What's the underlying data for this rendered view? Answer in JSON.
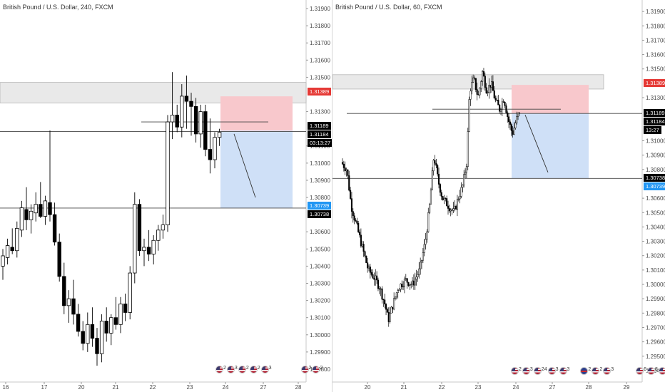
{
  "colors": {
    "bull_fill": "#ffffff",
    "bear_fill": "#000000",
    "candle_stroke": "#000000",
    "stop_zone": "#f8c8cc",
    "target_zone": "#cfe0f7",
    "supply_zone": "#e9e9e9",
    "red_tag": "#e53935",
    "blue_tag": "#2196f3",
    "black_tag": "#000000"
  },
  "left": {
    "title": "British Pound / U.S. Dollar, 240, FXCM",
    "price_min": 1.2975,
    "price_max": 1.3195,
    "y_labels": [
      "1.31900",
      "1.31800",
      "1.31700",
      "1.31600",
      "1.31500",
      "1.31300",
      "1.31100",
      "1.31000",
      "1.30900",
      "1.30800",
      "1.30600",
      "1.30500",
      "1.30400",
      "1.30300",
      "1.30200",
      "1.30100",
      "1.30000",
      "1.29900",
      "1.29800"
    ],
    "x_labels": [
      "16",
      "17",
      "20",
      "21",
      "22",
      "23",
      "24",
      "27",
      "28"
    ],
    "tags": {
      "sl": "1.31389",
      "entry_a": "1.31189",
      "entry_b": "1.31184",
      "countdown": "03:13:27",
      "tp_a": "1.30739",
      "tp_b": "1.30738"
    },
    "events": [
      {
        "icon": "us-flag-icon",
        "count": "2"
      },
      {
        "icon": "us-flag-icon",
        "count": "3"
      },
      {
        "icon": "us-flag-icon",
        "count": "2"
      },
      {
        "icon": "us-flag-icon",
        "count": "2"
      },
      {
        "icon": "us-flag-icon",
        "count": "3"
      },
      {
        "icon": "us-flag-icon",
        "count": "2"
      },
      {
        "icon": "us-flag-icon",
        "count": "2"
      }
    ],
    "candles": [
      [
        1.304,
        1.305,
        1.3032,
        1.3046
      ],
      [
        1.3045,
        1.3056,
        1.3041,
        1.3052
      ],
      [
        1.3051,
        1.3062,
        1.3047,
        1.3049
      ],
      [
        1.3049,
        1.3066,
        1.3045,
        1.3062
      ],
      [
        1.3061,
        1.3078,
        1.3057,
        1.3074
      ],
      [
        1.3073,
        1.3086,
        1.3061,
        1.3067
      ],
      [
        1.3067,
        1.3076,
        1.3059,
        1.3072
      ],
      [
        1.3071,
        1.3083,
        1.3066,
        1.3076
      ],
      [
        1.3076,
        1.3089,
        1.3068,
        1.3069
      ],
      [
        1.3069,
        1.3081,
        1.3064,
        1.3078
      ],
      [
        1.3077,
        1.3119,
        1.3066,
        1.307
      ],
      [
        1.307,
        1.3077,
        1.3052,
        1.3054
      ],
      [
        1.3054,
        1.3059,
        1.3031,
        1.3034
      ],
      [
        1.3034,
        1.3042,
        1.3012,
        1.3017
      ],
      [
        1.3017,
        1.3026,
        1.3007,
        1.3021
      ],
      [
        1.3021,
        1.3032,
        1.3006,
        1.3012
      ],
      [
        1.3012,
        1.3018,
        1.2999,
        1.3002
      ],
      [
        1.3002,
        1.3008,
        1.2991,
        1.2995
      ],
      [
        1.2995,
        1.3013,
        1.299,
        1.3006
      ],
      [
        1.3006,
        1.3016,
        1.2993,
        1.2998
      ],
      [
        1.2998,
        1.3004,
        1.2982,
        1.2989
      ],
      [
        1.2989,
        1.3012,
        1.2984,
        1.3008
      ],
      [
        1.3008,
        1.3016,
        1.2996,
        1.3001
      ],
      [
        1.3001,
        1.3012,
        1.2994,
        1.301
      ],
      [
        1.301,
        1.3022,
        1.3003,
        1.3006
      ],
      [
        1.3006,
        1.3022,
        1.3001,
        1.3018
      ],
      [
        1.3018,
        1.3024,
        1.3008,
        1.3013
      ],
      [
        1.3013,
        1.304,
        1.3009,
        1.3036
      ],
      [
        1.3036,
        1.3083,
        1.303,
        1.3076
      ],
      [
        1.3076,
        1.3079,
        1.3046,
        1.3049
      ],
      [
        1.3049,
        1.3056,
        1.304,
        1.3051
      ],
      [
        1.3051,
        1.3061,
        1.3043,
        1.3047
      ],
      [
        1.3047,
        1.3058,
        1.3041,
        1.3055
      ],
      [
        1.3055,
        1.3064,
        1.3049,
        1.3061
      ],
      [
        1.3061,
        1.307,
        1.3056,
        1.3064
      ],
      [
        1.3064,
        1.3128,
        1.306,
        1.3124
      ],
      [
        1.3124,
        1.3153,
        1.3114,
        1.3128
      ],
      [
        1.3128,
        1.3134,
        1.3118,
        1.3121
      ],
      [
        1.3121,
        1.3146,
        1.3115,
        1.3139
      ],
      [
        1.3139,
        1.3151,
        1.312,
        1.3136
      ],
      [
        1.3136,
        1.3141,
        1.3116,
        1.3133
      ],
      [
        1.3133,
        1.3138,
        1.3112,
        1.3117
      ],
      [
        1.3117,
        1.3134,
        1.3109,
        1.313
      ],
      [
        1.313,
        1.3134,
        1.3104,
        1.3108
      ],
      [
        1.3108,
        1.3126,
        1.3094,
        1.3102
      ],
      [
        1.3102,
        1.3118,
        1.3097,
        1.3115
      ],
      [
        1.3115,
        1.312,
        1.311,
        1.3118
      ]
    ]
  },
  "right": {
    "title": "British Pound / U.S. Dollar, 60, FXCM",
    "price_min": 1.2935,
    "price_max": 1.3198,
    "y_labels": [
      "1.31900",
      "1.31800",
      "1.31700",
      "1.31600",
      "1.31500",
      "1.31300",
      "1.31000",
      "1.30900",
      "1.30800",
      "1.30600",
      "1.30500",
      "1.30400",
      "1.30300",
      "1.30200",
      "1.30100",
      "1.30000",
      "1.29900",
      "1.29800",
      "1.29700",
      "1.29600",
      "1.29500",
      "1.29400"
    ],
    "x_labels": [
      "20",
      "21",
      "22",
      "23",
      "24",
      "27",
      "28",
      "29"
    ],
    "tags": {
      "sl": "1.31389",
      "entry_a": "1.31189",
      "entry_b": "1.31184",
      "countdown": "13:27",
      "tp_a": "1.30738",
      "tp_b": "1.30739"
    },
    "events": [
      {
        "icon": "us-flag-icon",
        "count": "2"
      },
      {
        "icon": "us-flag-icon",
        "count": "3"
      },
      {
        "icon": "us-flag-icon",
        "count": "24"
      },
      {
        "icon": "us-flag-icon",
        "count": "3"
      },
      {
        "icon": "us-flag-icon",
        "count": "3"
      },
      {
        "icon": "uk-flag-icon",
        "count": "2"
      },
      {
        "icon": "us-flag-icon",
        "count": "2"
      },
      {
        "icon": "us-flag-icon",
        "count": "3"
      },
      {
        "icon": "us-flag-icon",
        "count": "6"
      },
      {
        "icon": "us-flag-icon",
        "count": "8"
      },
      {
        "icon": "us-flag-icon",
        "count": "4"
      }
    ]
  }
}
